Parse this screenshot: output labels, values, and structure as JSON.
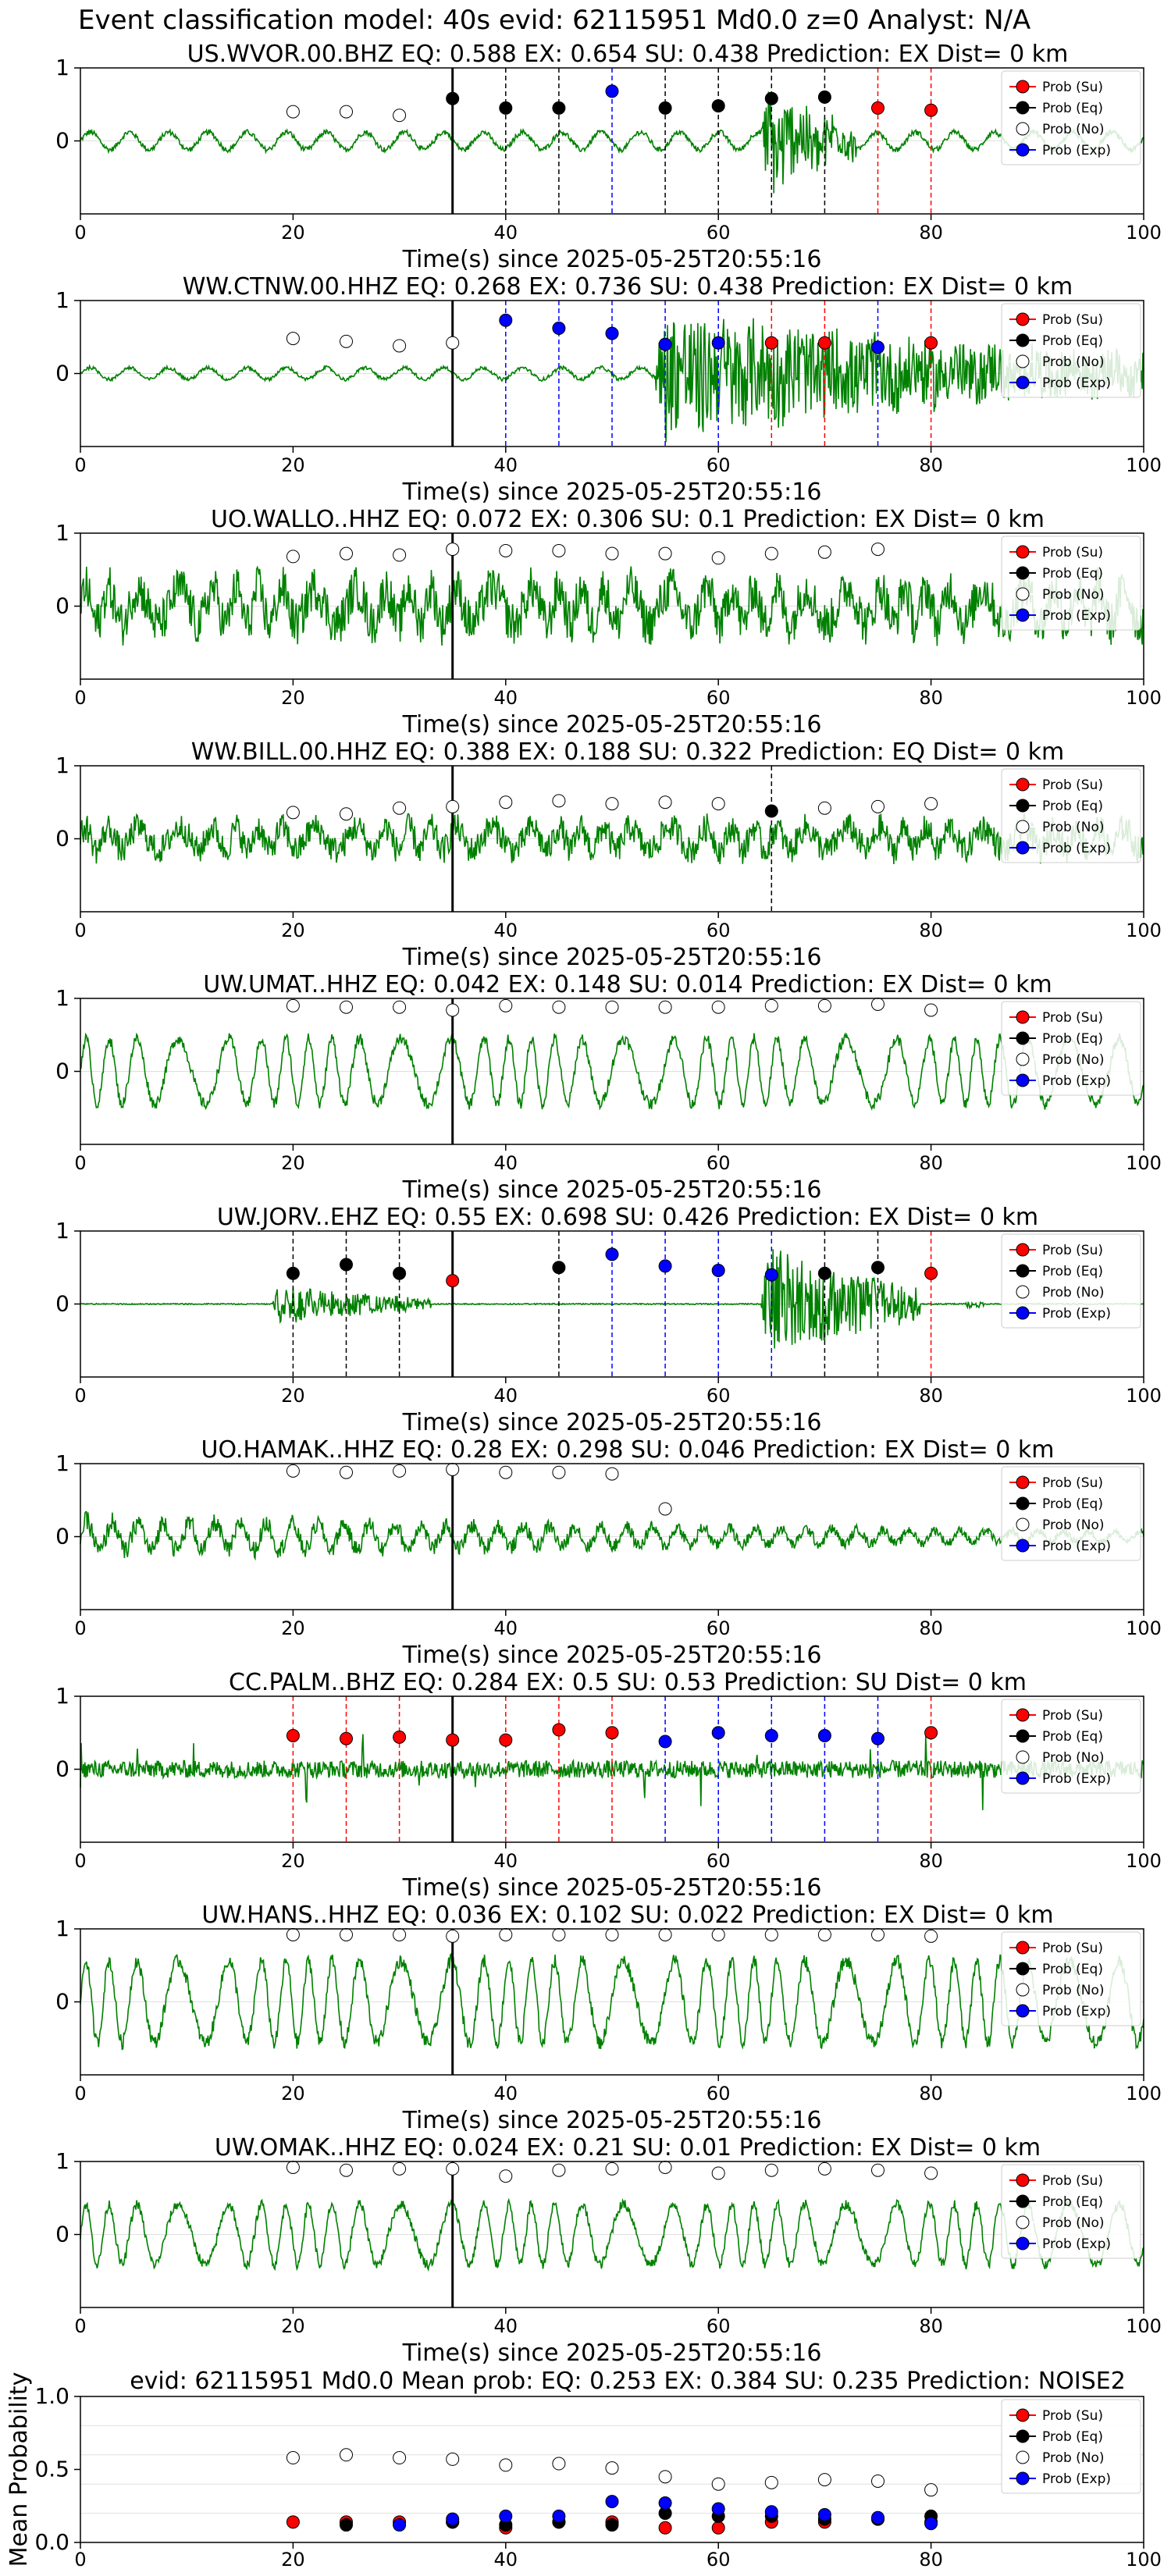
{
  "figure_title": "Event classification model: 40s evid: 62115951 Md0.0 z=0 Analyst: N/A",
  "colors": {
    "waveform": "#008000",
    "su": "#ff0000",
    "eq": "#000000",
    "no": "#ffffff",
    "exp": "#0000ff",
    "pick": "#000000"
  },
  "legend_labels": [
    "Prob (Su)",
    "Prob (Eq)",
    "Prob (No)",
    "Prob (Exp)"
  ],
  "x_tick_labels": [
    "0",
    "20",
    "40",
    "60",
    "80",
    "100"
  ],
  "prob_y_ticks": [
    "1",
    "0"
  ],
  "mean_y_ticks": [
    "1.0",
    "0.5",
    "0.0"
  ],
  "x_axis_label": "Time(s) since 2025-05-25T20:55:16",
  "mean_y_label": "Mean Probability",
  "chart_data": [
    {
      "type": "line",
      "title": "US.WVOR.00.BHZ   EQ: 0.588  EX: 0.654  SU: 0.438   Prediction: EX    Dist= 0 km",
      "xlabel": "Time(s) since 2025-05-25T20:55:16",
      "xlim": [
        0,
        100
      ],
      "ylim": [
        -1,
        1
      ],
      "pick_time": 35,
      "waveform": {
        "style": "mixed",
        "burst": [
          64,
          73
        ],
        "base": 0.12,
        "peak": 0.85
      },
      "series": [
        {
          "name": "Prob (Su)",
          "x": [
            75,
            80
          ],
          "y": [
            0.45,
            0.42
          ]
        },
        {
          "name": "Prob (Eq)",
          "x": [
            35,
            40,
            45,
            55,
            60,
            65,
            70
          ],
          "y": [
            0.58,
            0.45,
            0.45,
            0.45,
            0.48,
            0.58,
            0.6
          ]
        },
        {
          "name": "Prob (No)",
          "x": [
            20,
            25,
            30
          ],
          "y": [
            0.4,
            0.4,
            0.35
          ]
        },
        {
          "name": "Prob (Exp)",
          "x": [
            50
          ],
          "y": [
            0.68
          ]
        }
      ]
    },
    {
      "type": "line",
      "title": "WW.CTNW.00.HHZ   EQ: 0.268  EX: 0.736  SU: 0.438   Prediction: EX    Dist= 0 km",
      "xlabel": "Time(s) since 2025-05-25T20:55:16",
      "xlim": [
        0,
        100
      ],
      "ylim": [
        -1,
        1
      ],
      "pick_time": 35,
      "waveform": {
        "style": "mixed",
        "burst": [
          54,
          100
        ],
        "base": 0.08,
        "peak": 0.9
      },
      "series": [
        {
          "name": "Prob (Su)",
          "x": [
            65,
            70,
            80
          ],
          "y": [
            0.42,
            0.42,
            0.42
          ]
        },
        {
          "name": "Prob (Eq)",
          "x": [],
          "y": []
        },
        {
          "name": "Prob (No)",
          "x": [
            20,
            25,
            30,
            35
          ],
          "y": [
            0.48,
            0.44,
            0.38,
            0.42
          ]
        },
        {
          "name": "Prob (Exp)",
          "x": [
            40,
            45,
            50,
            55,
            60,
            75
          ],
          "y": [
            0.73,
            0.62,
            0.55,
            0.4,
            0.42,
            0.36
          ]
        }
      ]
    },
    {
      "type": "line",
      "title": "UO.WALLO..HHZ   EQ: 0.072  EX: 0.306  SU: 0.1   Prediction: EX    Dist= 0 km",
      "xlabel": "Time(s) since 2025-05-25T20:55:16",
      "xlim": [
        0,
        100
      ],
      "ylim": [
        -1,
        1
      ],
      "pick_time": 35,
      "waveform": {
        "style": "noisy",
        "amp": 0.55
      },
      "series": [
        {
          "name": "Prob (Su)",
          "x": [],
          "y": []
        },
        {
          "name": "Prob (Eq)",
          "x": [],
          "y": []
        },
        {
          "name": "Prob (No)",
          "x": [
            20,
            25,
            30,
            35,
            40,
            45,
            50,
            55,
            60,
            65,
            70,
            75
          ],
          "y": [
            0.68,
            0.72,
            0.7,
            0.78,
            0.76,
            0.76,
            0.72,
            0.72,
            0.66,
            0.72,
            0.74,
            0.78
          ]
        },
        {
          "name": "Prob (Exp)",
          "x": [],
          "y": []
        }
      ]
    },
    {
      "type": "line",
      "title": "WW.BILL.00.HHZ   EQ: 0.388  EX: 0.188  SU: 0.322   Prediction: EQ    Dist= 0 km",
      "xlabel": "Time(s) since 2025-05-25T20:55:16",
      "xlim": [
        0,
        100
      ],
      "ylim": [
        -1,
        1
      ],
      "pick_time": 35,
      "waveform": {
        "style": "noisy",
        "amp": 0.35
      },
      "series": [
        {
          "name": "Prob (Su)",
          "x": [],
          "y": []
        },
        {
          "name": "Prob (Eq)",
          "x": [
            65
          ],
          "y": [
            0.38
          ]
        },
        {
          "name": "Prob (No)",
          "x": [
            20,
            25,
            30,
            35,
            40,
            45,
            50,
            55,
            60,
            70,
            75,
            80
          ],
          "y": [
            0.36,
            0.34,
            0.42,
            0.44,
            0.5,
            0.52,
            0.48,
            0.5,
            0.48,
            0.42,
            0.44,
            0.48
          ]
        },
        {
          "name": "Prob (Exp)",
          "x": [],
          "y": []
        }
      ]
    },
    {
      "type": "line",
      "title": "UW.UMAT..HHZ   EQ: 0.042  EX: 0.148  SU: 0.014   Prediction: EX    Dist= 0 km",
      "xlabel": "Time(s) since 2025-05-25T20:55:16",
      "xlim": [
        0,
        100
      ],
      "ylim": [
        -1,
        1
      ],
      "pick_time": 35,
      "waveform": {
        "style": "smooth",
        "amp": 0.6
      },
      "series": [
        {
          "name": "Prob (Su)",
          "x": [],
          "y": []
        },
        {
          "name": "Prob (Eq)",
          "x": [],
          "y": []
        },
        {
          "name": "Prob (No)",
          "x": [
            20,
            25,
            30,
            35,
            40,
            45,
            50,
            55,
            60,
            65,
            70,
            75,
            80
          ],
          "y": [
            0.9,
            0.88,
            0.88,
            0.84,
            0.9,
            0.88,
            0.88,
            0.88,
            0.88,
            0.9,
            0.9,
            0.92,
            0.84
          ]
        },
        {
          "name": "Prob (Exp)",
          "x": [],
          "y": []
        }
      ]
    },
    {
      "type": "line",
      "title": "UW.JORV..EHZ   EQ: 0.55  EX: 0.698  SU: 0.426   Prediction: EX    Dist= 0 km",
      "xlabel": "Time(s) since 2025-05-25T20:55:16",
      "xlim": [
        0,
        100
      ],
      "ylim": [
        -1,
        1
      ],
      "pick_time": 35,
      "waveform": {
        "style": "quiet",
        "bursts": [
          [
            18,
            33,
            0.3
          ],
          [
            64,
            79,
            0.85
          ],
          [
            83,
            85,
            0.12
          ]
        ]
      },
      "series": [
        {
          "name": "Prob (Su)",
          "x": [
            35,
            80
          ],
          "y": [
            0.32,
            0.42
          ]
        },
        {
          "name": "Prob (Eq)",
          "x": [
            20,
            25,
            30,
            45,
            70,
            75
          ],
          "y": [
            0.42,
            0.54,
            0.42,
            0.5,
            0.42,
            0.5
          ]
        },
        {
          "name": "Prob (No)",
          "x": [],
          "y": []
        },
        {
          "name": "Prob (Exp)",
          "x": [
            50,
            55,
            60,
            65
          ],
          "y": [
            0.68,
            0.52,
            0.46,
            0.4
          ]
        }
      ]
    },
    {
      "type": "line",
      "title": "UO.HAMAK..HHZ   EQ: 0.28  EX: 0.298  SU: 0.046   Prediction: EX    Dist= 0 km",
      "xlabel": "Time(s) since 2025-05-25T20:55:16",
      "xlim": [
        0,
        100
      ],
      "ylim": [
        -1,
        1
      ],
      "pick_time": 35,
      "waveform": {
        "style": "decay",
        "amp": 0.35
      },
      "series": [
        {
          "name": "Prob (Su)",
          "x": [],
          "y": []
        },
        {
          "name": "Prob (Eq)",
          "x": [],
          "y": []
        },
        {
          "name": "Prob (No)",
          "x": [
            20,
            25,
            30,
            35,
            40,
            45,
            50,
            55
          ],
          "y": [
            0.9,
            0.88,
            0.9,
            0.92,
            0.88,
            0.88,
            0.86,
            0.38
          ]
        },
        {
          "name": "Prob (Exp)",
          "x": [],
          "y": []
        }
      ]
    },
    {
      "type": "line",
      "title": "CC.PALM..BHZ   EQ: 0.284  EX: 0.5  SU: 0.53   Prediction: SU    Dist= 0 km",
      "xlabel": "Time(s) since 2025-05-25T20:55:16",
      "xlim": [
        0,
        100
      ],
      "ylim": [
        -1,
        1
      ],
      "pick_time": 35,
      "waveform": {
        "style": "spiky",
        "amp": 0.12
      },
      "series": [
        {
          "name": "Prob (Su)",
          "x": [
            20,
            25,
            30,
            35,
            40,
            45,
            50,
            80
          ],
          "y": [
            0.46,
            0.42,
            0.44,
            0.4,
            0.4,
            0.54,
            0.5,
            0.5
          ]
        },
        {
          "name": "Prob (Eq)",
          "x": [],
          "y": []
        },
        {
          "name": "Prob (No)",
          "x": [],
          "y": []
        },
        {
          "name": "Prob (Exp)",
          "x": [
            55,
            60,
            65,
            70,
            75
          ],
          "y": [
            0.38,
            0.5,
            0.46,
            0.46,
            0.42
          ]
        }
      ]
    },
    {
      "type": "line",
      "title": "UW.HANS..HHZ   EQ: 0.036  EX: 0.102  SU: 0.022   Prediction: EX    Dist= 0 km",
      "xlabel": "Time(s) since 2025-05-25T20:55:16",
      "xlim": [
        0,
        100
      ],
      "ylim": [
        -1,
        1
      ],
      "pick_time": 35,
      "waveform": {
        "style": "smooth",
        "amp": 0.75
      },
      "series": [
        {
          "name": "Prob (Su)",
          "x": [],
          "y": []
        },
        {
          "name": "Prob (Eq)",
          "x": [],
          "y": []
        },
        {
          "name": "Prob (No)",
          "x": [
            20,
            25,
            30,
            35,
            40,
            45,
            50,
            55,
            60,
            65,
            70,
            75,
            80
          ],
          "y": [
            0.92,
            0.92,
            0.92,
            0.9,
            0.92,
            0.92,
            0.92,
            0.92,
            0.92,
            0.92,
            0.92,
            0.92,
            0.9
          ]
        },
        {
          "name": "Prob (Exp)",
          "x": [],
          "y": []
        }
      ]
    },
    {
      "type": "line",
      "title": "UW.OMAK..HHZ   EQ: 0.024  EX: 0.21  SU: 0.01   Prediction: EX    Dist= 0 km",
      "xlabel": "Time(s) since 2025-05-25T20:55:16",
      "xlim": [
        0,
        100
      ],
      "ylim": [
        -1,
        1
      ],
      "pick_time": 35,
      "waveform": {
        "style": "smooth",
        "amp": 0.55
      },
      "series": [
        {
          "name": "Prob (Su)",
          "x": [],
          "y": []
        },
        {
          "name": "Prob (Eq)",
          "x": [],
          "y": []
        },
        {
          "name": "Prob (No)",
          "x": [
            20,
            25,
            30,
            35,
            40,
            45,
            50,
            55,
            60,
            65,
            70,
            75,
            80
          ],
          "y": [
            0.92,
            0.88,
            0.9,
            0.9,
            0.8,
            0.88,
            0.9,
            0.92,
            0.84,
            0.88,
            0.9,
            0.88,
            0.84
          ]
        },
        {
          "name": "Prob (Exp)",
          "x": [],
          "y": []
        }
      ]
    },
    {
      "type": "scatter",
      "title": "evid: 62115951  Md0.0   Mean prob:   EQ: 0.253  EX: 0.384  SU: 0.235   Prediction: NOISE2",
      "xlabel": "",
      "ylabel": "Mean Probability",
      "xlim": [
        0,
        100
      ],
      "ylim": [
        0,
        1
      ],
      "series": [
        {
          "name": "Prob (Su)",
          "x": [
            20,
            25,
            30,
            35,
            40,
            45,
            50,
            55,
            60,
            65,
            70,
            75,
            80
          ],
          "y": [
            0.14,
            0.14,
            0.14,
            0.14,
            0.1,
            0.14,
            0.14,
            0.1,
            0.1,
            0.14,
            0.14,
            0.16,
            0.14
          ]
        },
        {
          "name": "Prob (Eq)",
          "x": [
            25,
            35,
            40,
            45,
            50,
            55,
            60,
            65,
            70,
            75,
            80
          ],
          "y": [
            0.12,
            0.14,
            0.12,
            0.14,
            0.12,
            0.2,
            0.18,
            0.18,
            0.16,
            0.16,
            0.18
          ]
        },
        {
          "name": "Prob (No)",
          "x": [
            20,
            25,
            30,
            35,
            40,
            45,
            50,
            55,
            60,
            65,
            70,
            75,
            80
          ],
          "y": [
            0.58,
            0.6,
            0.58,
            0.57,
            0.53,
            0.54,
            0.51,
            0.45,
            0.4,
            0.41,
            0.43,
            0.42,
            0.36
          ]
        },
        {
          "name": "Prob (Exp)",
          "x": [
            30,
            35,
            40,
            45,
            50,
            55,
            60,
            65,
            70,
            75,
            80
          ],
          "y": [
            0.12,
            0.16,
            0.18,
            0.18,
            0.28,
            0.27,
            0.23,
            0.21,
            0.19,
            0.17,
            0.13
          ]
        }
      ]
    }
  ]
}
